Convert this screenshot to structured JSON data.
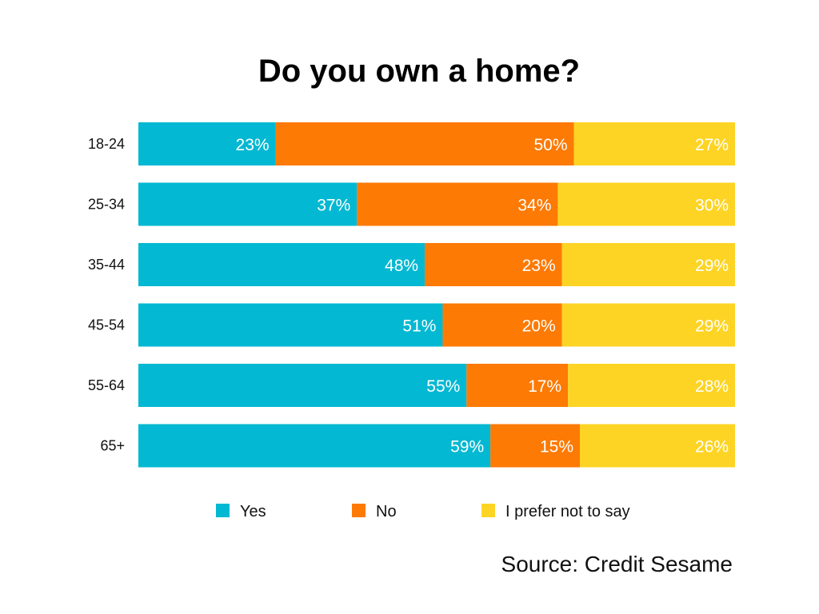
{
  "chart_data": {
    "type": "bar",
    "orientation": "horizontal",
    "stacked": true,
    "title": "Do you own a home?",
    "categories": [
      "18-24",
      "25-34",
      "35-44",
      "45-54",
      "55-64",
      "65+"
    ],
    "series": [
      {
        "name": "Yes",
        "color": "#03B8D2",
        "values": [
          23,
          37,
          48,
          51,
          55,
          59
        ],
        "labels": [
          "23%",
          "37%",
          "48%",
          "51%",
          "55%",
          "59%"
        ]
      },
      {
        "name": "No",
        "color": "#FD7A04",
        "values": [
          50,
          34,
          23,
          20,
          17,
          15
        ],
        "labels": [
          "50%",
          "34%",
          "23%",
          "20%",
          "17%",
          "15%"
        ]
      },
      {
        "name": "I prefer not to say",
        "color": "#FDD424",
        "values": [
          27,
          30,
          29,
          29,
          28,
          26
        ],
        "labels": [
          "27%",
          "30%",
          "29%",
          "29%",
          "28%",
          "26%"
        ]
      }
    ],
    "legend_position": "bottom",
    "grid": false,
    "source": "Source: Credit Sesame"
  }
}
